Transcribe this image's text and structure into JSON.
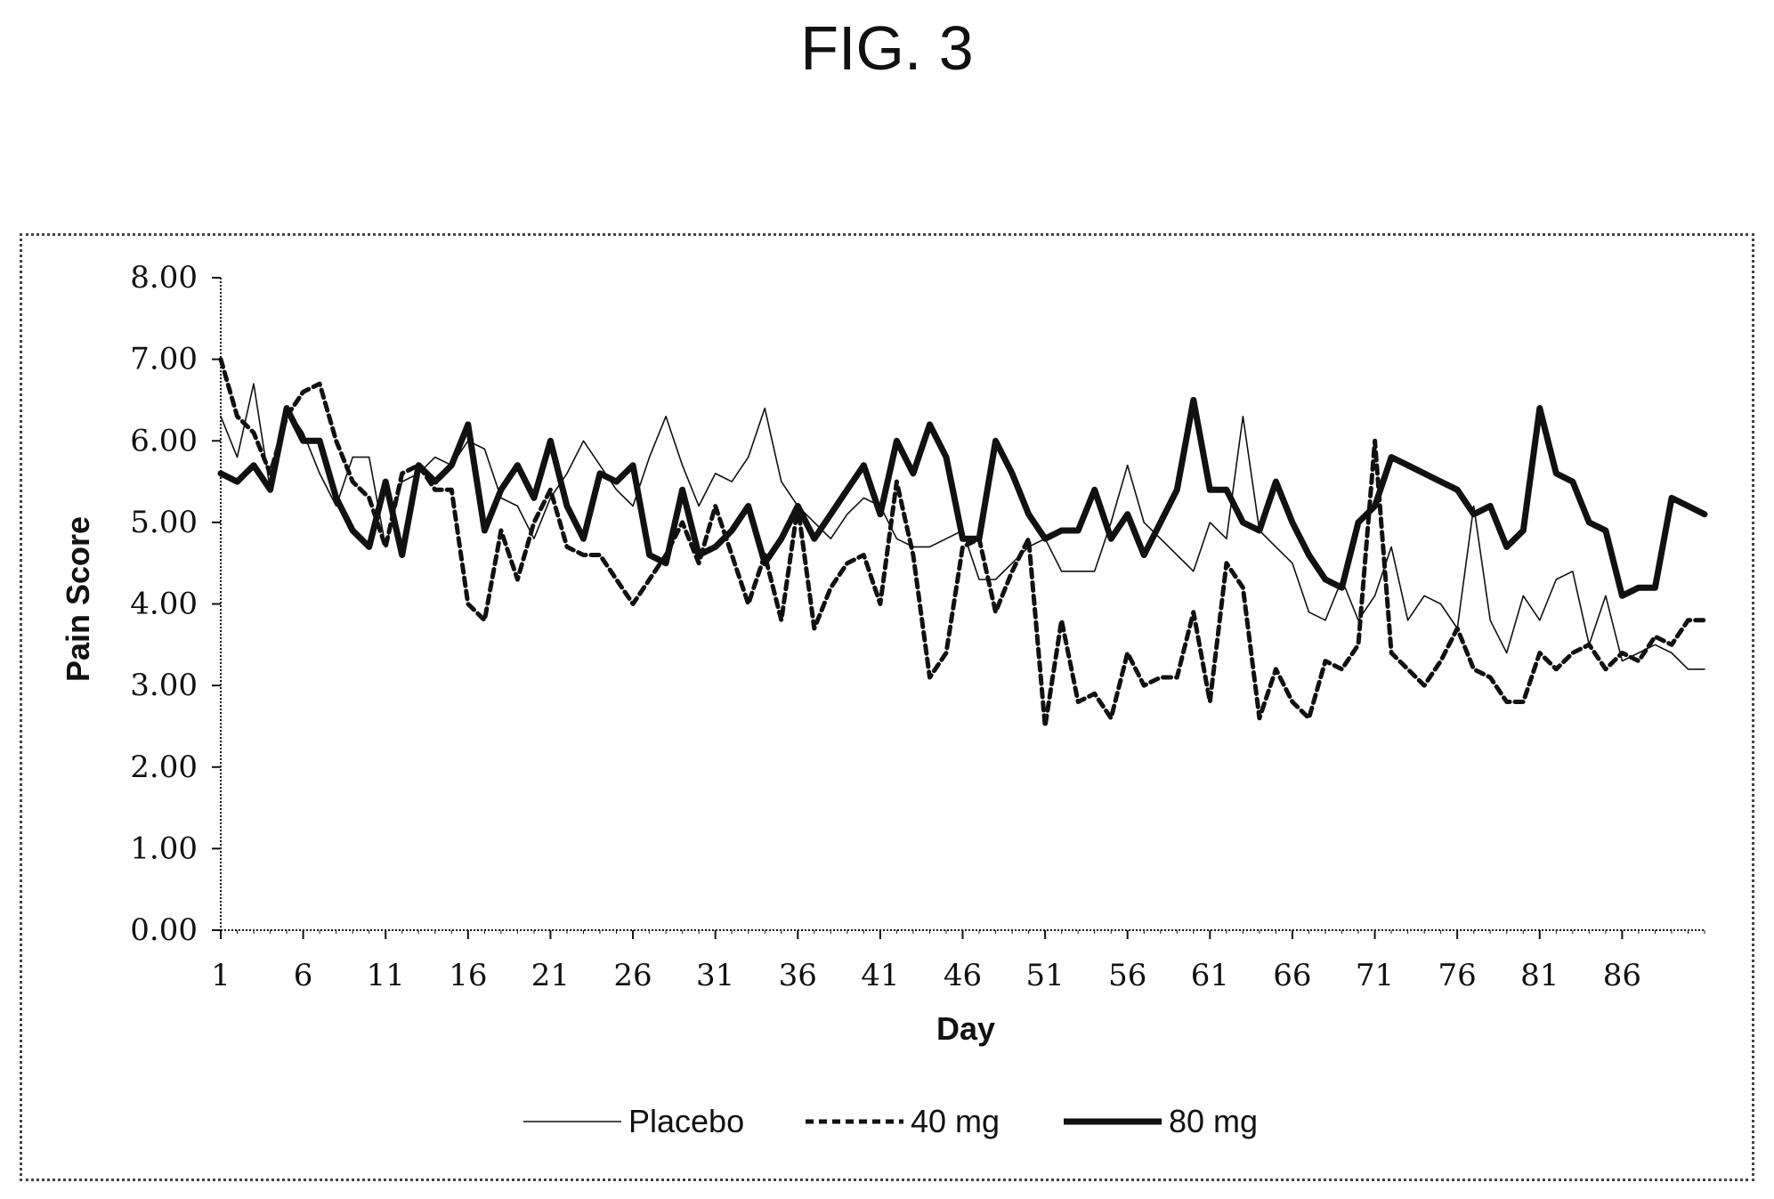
{
  "figure": {
    "title": "FIG. 3"
  },
  "colors": {
    "ink": "#111111",
    "frame": "#444444"
  },
  "chart_data": {
    "type": "line",
    "title": "",
    "xlabel": "Day",
    "ylabel": "Pain Score",
    "xlim": [
      1,
      91
    ],
    "ylim": [
      0,
      8
    ],
    "xticks": [
      1,
      6,
      11,
      16,
      21,
      26,
      31,
      36,
      41,
      46,
      51,
      56,
      61,
      66,
      71,
      76,
      81,
      86
    ],
    "yticks": [
      "0.00",
      "1.00",
      "2.00",
      "3.00",
      "4.00",
      "5.00",
      "6.00",
      "7.00",
      "8.00"
    ],
    "grid": false,
    "legend_position": "bottom",
    "x": [
      1,
      2,
      3,
      4,
      5,
      6,
      7,
      8,
      9,
      10,
      11,
      12,
      13,
      14,
      15,
      16,
      17,
      18,
      19,
      20,
      21,
      22,
      23,
      24,
      25,
      26,
      27,
      28,
      29,
      30,
      31,
      32,
      33,
      34,
      35,
      36,
      37,
      38,
      39,
      40,
      41,
      42,
      43,
      44,
      45,
      46,
      47,
      48,
      49,
      50,
      51,
      52,
      53,
      54,
      55,
      56,
      57,
      58,
      59,
      60,
      61,
      62,
      63,
      64,
      65,
      66,
      67,
      68,
      69,
      70,
      71,
      72,
      73,
      74,
      75,
      76,
      77,
      78,
      79,
      80,
      81,
      82,
      83,
      84,
      85,
      86,
      87,
      88,
      89,
      90,
      91
    ],
    "series": [
      {
        "name": "Placebo",
        "style": "thin",
        "values": [
          6.3,
          5.8,
          6.7,
          5.4,
          6.4,
          6.1,
          5.6,
          5.2,
          5.8,
          5.8,
          4.7,
          5.5,
          5.6,
          5.8,
          5.7,
          6.0,
          5.9,
          5.3,
          5.2,
          4.8,
          5.3,
          5.6,
          6.0,
          5.7,
          5.4,
          5.2,
          5.8,
          6.3,
          5.7,
          5.2,
          5.6,
          5.5,
          5.8,
          6.4,
          5.5,
          5.2,
          5.0,
          4.8,
          5.1,
          5.3,
          5.2,
          4.8,
          4.7,
          4.7,
          4.8,
          4.9,
          4.3,
          4.3,
          4.5,
          4.7,
          4.8,
          4.4,
          4.4,
          4.4,
          5.0,
          5.7,
          5.0,
          4.8,
          4.6,
          4.4,
          5.0,
          4.8,
          6.3,
          4.9,
          4.7,
          4.5,
          3.9,
          3.8,
          4.3,
          3.8,
          4.1,
          4.7,
          3.8,
          4.1,
          4.0,
          3.7,
          5.2,
          3.8,
          3.4,
          4.1,
          3.8,
          4.3,
          4.4,
          3.5,
          4.1,
          3.3,
          3.4,
          3.5,
          3.4,
          3.2,
          3.2
        ]
      },
      {
        "name": "40 mg",
        "style": "dashed",
        "values": [
          7.0,
          6.3,
          6.1,
          5.6,
          6.3,
          6.6,
          6.7,
          6.0,
          5.5,
          5.3,
          4.7,
          5.6,
          5.7,
          5.4,
          5.4,
          4.0,
          3.8,
          4.9,
          4.3,
          5.0,
          5.4,
          4.7,
          4.6,
          4.6,
          4.3,
          4.0,
          4.3,
          4.6,
          5.0,
          4.5,
          5.2,
          4.6,
          4.0,
          4.6,
          3.8,
          5.2,
          3.7,
          4.2,
          4.5,
          4.6,
          4.0,
          5.5,
          4.6,
          3.1,
          3.4,
          4.7,
          4.8,
          3.9,
          4.4,
          4.8,
          2.5,
          3.8,
          2.8,
          2.9,
          2.6,
          3.4,
          3.0,
          3.1,
          3.1,
          3.9,
          2.8,
          4.5,
          4.2,
          2.6,
          3.2,
          2.8,
          2.6,
          3.3,
          3.2,
          3.5,
          6.0,
          3.4,
          3.2,
          3.0,
          3.3,
          3.7,
          3.2,
          3.1,
          2.8,
          2.8,
          3.4,
          3.2,
          3.4,
          3.5,
          3.2,
          3.4,
          3.3,
          3.6,
          3.5,
          3.8,
          3.8
        ]
      },
      {
        "name": "80 mg",
        "style": "thick",
        "values": [
          5.6,
          5.5,
          5.7,
          5.4,
          6.4,
          6.0,
          6.0,
          5.3,
          4.9,
          4.7,
          5.5,
          4.6,
          5.7,
          5.5,
          5.7,
          6.2,
          4.9,
          5.4,
          5.7,
          5.3,
          6.0,
          5.2,
          4.8,
          5.6,
          5.5,
          5.7,
          4.6,
          4.5,
          5.4,
          4.6,
          4.7,
          4.9,
          5.2,
          4.5,
          4.8,
          5.2,
          4.8,
          5.1,
          5.4,
          5.7,
          5.1,
          6.0,
          5.6,
          6.2,
          5.8,
          4.8,
          4.8,
          6.0,
          5.6,
          5.1,
          4.8,
          4.9,
          4.9,
          5.4,
          4.8,
          5.1,
          4.6,
          5.0,
          5.4,
          6.5,
          5.4,
          5.4,
          5.0,
          4.9,
          5.5,
          5.0,
          4.6,
          4.3,
          4.2,
          5.0,
          5.2,
          5.8,
          5.7,
          5.6,
          5.5,
          5.4,
          5.1,
          5.2,
          4.7,
          4.9,
          6.4,
          5.6,
          5.5,
          5.0,
          4.9,
          4.1,
          4.2,
          4.2,
          5.3,
          5.2,
          5.1
        ]
      }
    ]
  }
}
